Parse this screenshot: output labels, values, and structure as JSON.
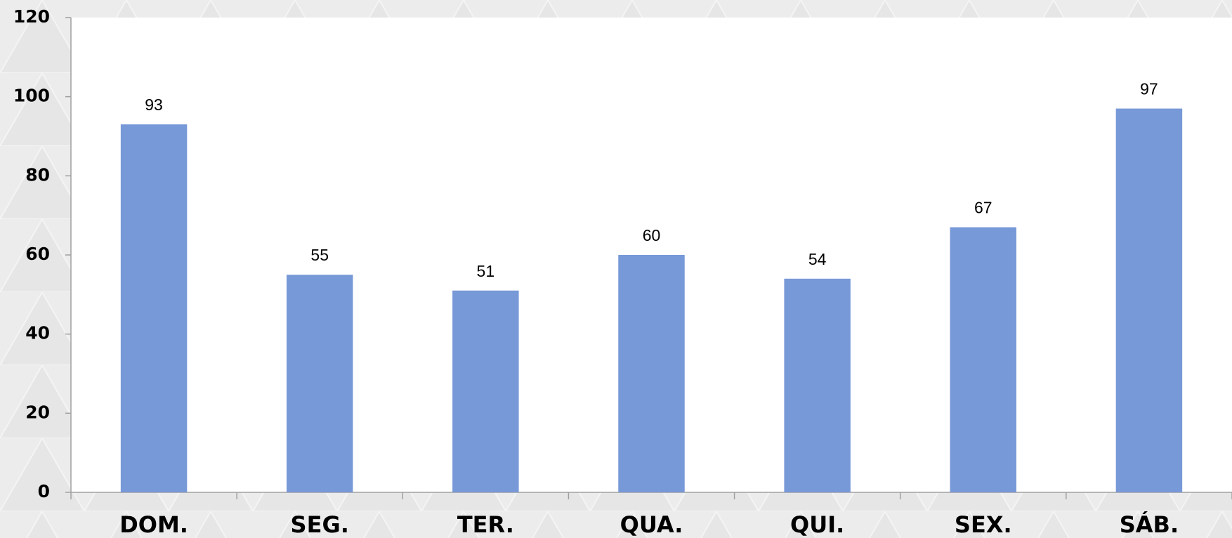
{
  "chart_data": {
    "type": "bar",
    "categories": [
      "DOM.",
      "SEG.",
      "TER.",
      "QUA.",
      "QUI.",
      "SEX.",
      "SÁB."
    ],
    "values": [
      93,
      55,
      51,
      60,
      54,
      67,
      97
    ],
    "color": "#7899d8",
    "ylim": [
      0,
      120
    ],
    "yticks": [
      0,
      20,
      40,
      60,
      80,
      100,
      120
    ],
    "grid": false
  }
}
